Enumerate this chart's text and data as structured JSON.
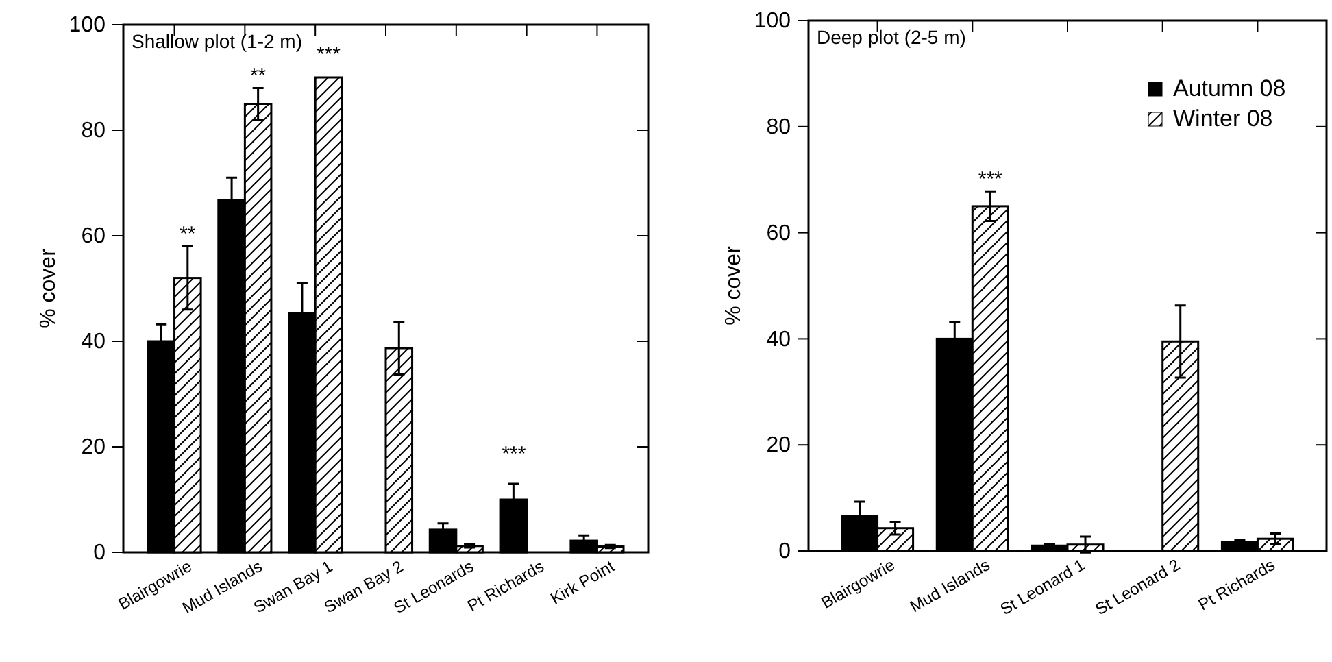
{
  "chart_data": [
    {
      "type": "bar",
      "title": "Shallow plot (1-2 m)",
      "ylabel": "% cover",
      "categories": [
        "Blairgowrie",
        "Mud Islands",
        "Swan Bay 1",
        "Swan Bay 2",
        "St Leonards",
        "Pt Richards",
        "Kirk Point"
      ],
      "ylim": [
        0,
        100
      ],
      "yticks": [
        0,
        20,
        40,
        60,
        80,
        100
      ],
      "legend": false,
      "series": [
        {
          "color": "#000000",
          "values": [
            40,
            66.7,
            45.3,
            0,
            4.3,
            10,
            2.2
          ],
          "errors": [
            3.2,
            4.3,
            5.7,
            null,
            1.2,
            3,
            1
          ]
        },
        {
          "color": "#ffffff",
          "values": [
            52,
            85,
            90,
            38.7,
            1.2,
            0,
            1.1
          ],
          "errors": [
            6,
            3,
            null,
            5,
            0.3,
            null,
            0.3
          ]
        }
      ],
      "annotations": [
        {
          "text": "**",
          "x": "Blairgowrie",
          "y": 58
        },
        {
          "text": "**",
          "x": "Mud Islands",
          "y": 88
        },
        {
          "text": "***",
          "x": "Swan Bay 1",
          "y": 90
        },
        "***"
      ]
    },
    {
      "type": "bar",
      "title": "Deep plot (2-5 m)",
      "ylabel": "% cover",
      "categories": [
        "Blairgowrie",
        "Mud Islands",
        "St Leonard 1",
        "St Leonard 2",
        "Pt Richards"
      ],
      "ylim": [
        0,
        100
      ],
      "yticks": [
        0,
        20,
        40,
        60,
        80,
        100
      ],
      "legend": "top right",
      "series": [
        {
          "name": "Autumn 08",
          "color": "#000000",
          "values": [
            6.6,
            40,
            1,
            0,
            1.7
          ],
          "errors": [
            2.7,
            3.2,
            0.3,
            null,
            0.3
          ]
        },
        {
          "name": "Winter 08",
          "color": "#ffffff",
          "values": [
            4.3,
            65,
            1.2,
            39.5,
            2.3
          ],
          "errors": [
            1.2,
            2.8,
            1.5,
            6.8,
            1
          ]
        }
      ],
      "annotations": [
        {
          "text": "***",
          "x": "Mud Islands",
          "y": 67.8
        }
      ]
    }
  ]
}
